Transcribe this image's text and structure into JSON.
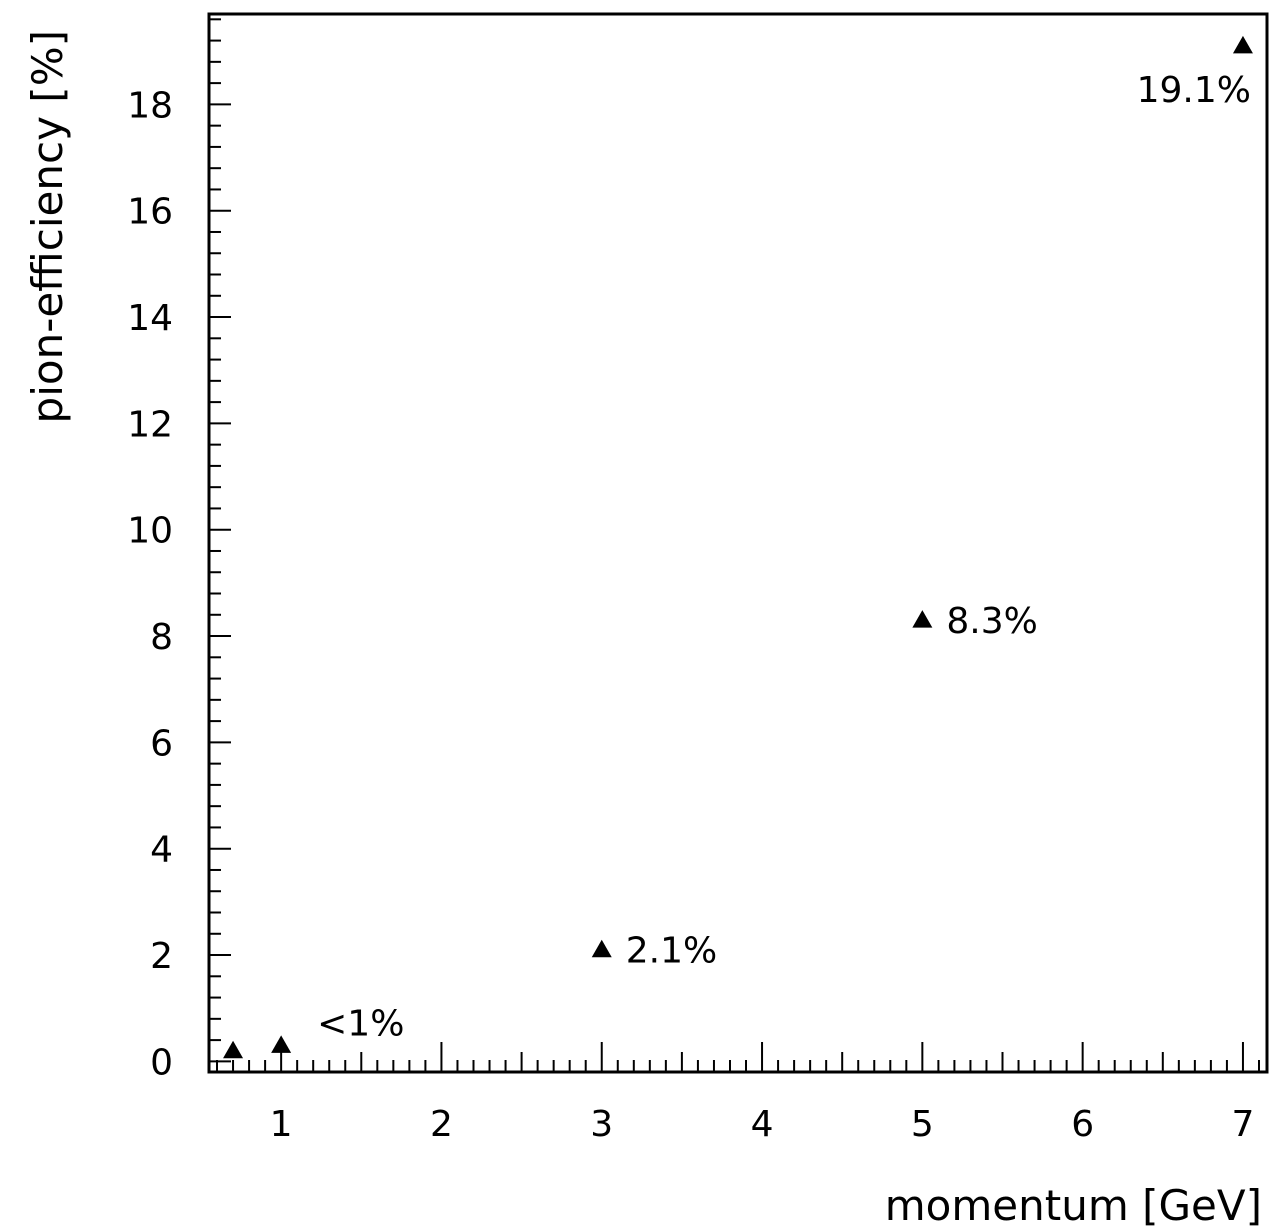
{
  "chart_data": {
    "type": "scatter",
    "xlabel": "momentum [GeV]",
    "ylabel": "pion-efficiency [%]",
    "xlim": [
      0.55,
      7.15
    ],
    "ylim": [
      -0.2,
      19.7
    ],
    "x_ticks": [
      1,
      2,
      3,
      4,
      5,
      6,
      7
    ],
    "y_ticks": [
      0,
      2,
      4,
      6,
      8,
      10,
      12,
      14,
      16,
      18
    ],
    "grid": false,
    "marker": "triangle",
    "points": [
      {
        "x": 0.7,
        "y": 0.2,
        "label": ""
      },
      {
        "x": 1.0,
        "y": 0.3,
        "label": "<1%"
      },
      {
        "x": 3.0,
        "y": 2.1,
        "label": "2.1%"
      },
      {
        "x": 5.0,
        "y": 8.3,
        "label": "8.3%"
      },
      {
        "x": 7.0,
        "y": 19.1,
        "label": "19.1%"
      }
    ]
  }
}
